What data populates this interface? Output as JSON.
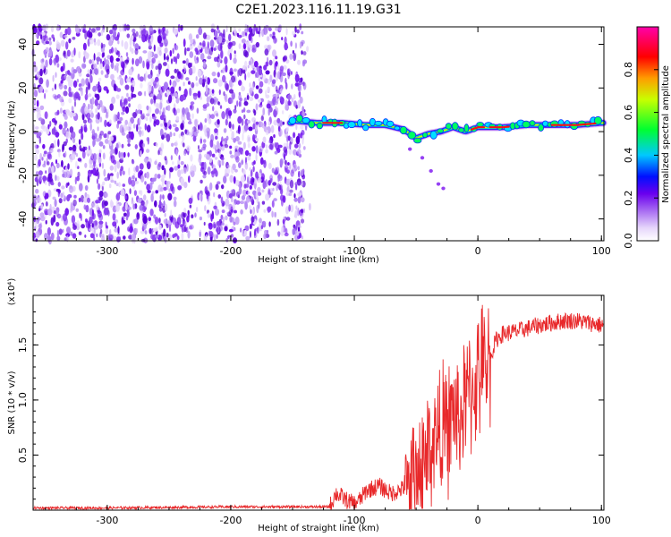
{
  "chart_data": [
    {
      "type": "heatmap",
      "title": "C2E1.2023.116.11.19.G31",
      "xlabel": "Height of straight line (km)",
      "ylabel": "Frequency (Hz)",
      "xlim": [
        -360,
        102
      ],
      "ylim": [
        -50,
        48
      ],
      "xticks": [
        "-300",
        "-200",
        "-100",
        "0",
        "100"
      ],
      "yticks": [
        "40",
        "20",
        "0",
        "-20",
        "-40"
      ],
      "colorbar": {
        "label": "Normalized spectral amplitude",
        "range": [
          0,
          1
        ],
        "ticks": [
          "0.0",
          "0.2",
          "0.4",
          "0.6",
          "0.8"
        ],
        "colormap": "rainbow (white-lavender-purple-blue-cyan-green-yellow-red-magenta)"
      },
      "ridge_frequency": {
        "x": [
          -150,
          -130,
          -110,
          -90,
          -75,
          -60,
          -50,
          -40,
          -30,
          -20,
          -10,
          0,
          20,
          40,
          60,
          80,
          100
        ],
        "y": [
          5,
          4,
          4,
          3,
          3,
          1,
          -3,
          -1,
          0,
          2,
          0,
          2,
          2,
          3,
          3,
          3,
          4
        ]
      },
      "noise_region_x": [
        -360,
        -140
      ],
      "colors": {
        "low": "#c9a8f8",
        "mid": "#7a10f0",
        "ridge": "#00ff80",
        "peak": "#ff0000"
      }
    },
    {
      "type": "line",
      "xlabel": "Height of straight line (km)",
      "ylabel": "SNR (10 * v/v)",
      "scale_note": "(x10⁴)",
      "xlim": [
        -360,
        102
      ],
      "ylim": [
        0,
        1.95
      ],
      "xticks": [
        "-300",
        "-200",
        "-100",
        "0",
        "100"
      ],
      "yticks": [
        "1.5",
        "1.0",
        "0.5"
      ],
      "series": [
        {
          "color": "#e8282a",
          "x": [
            -360,
            -300,
            -200,
            -120,
            -115,
            -110,
            -105,
            -100,
            -95,
            -90,
            -80,
            -70,
            -60,
            -50,
            -40,
            -35,
            -30,
            -25,
            -20,
            -15,
            -10,
            -5,
            0,
            5,
            10,
            15,
            20,
            30,
            40,
            50,
            60,
            70,
            80,
            90,
            100
          ],
          "y": [
            0.02,
            0.02,
            0.03,
            0.03,
            0.15,
            0.12,
            0.08,
            0.06,
            0.1,
            0.18,
            0.22,
            0.15,
            0.2,
            0.3,
            0.55,
            0.65,
            0.75,
            0.7,
            0.9,
            0.8,
            1.0,
            1.1,
            1.2,
            1.3,
            1.4,
            1.55,
            1.6,
            1.62,
            1.65,
            1.68,
            1.7,
            1.72,
            1.72,
            1.7,
            1.68
          ]
        }
      ]
    }
  ]
}
